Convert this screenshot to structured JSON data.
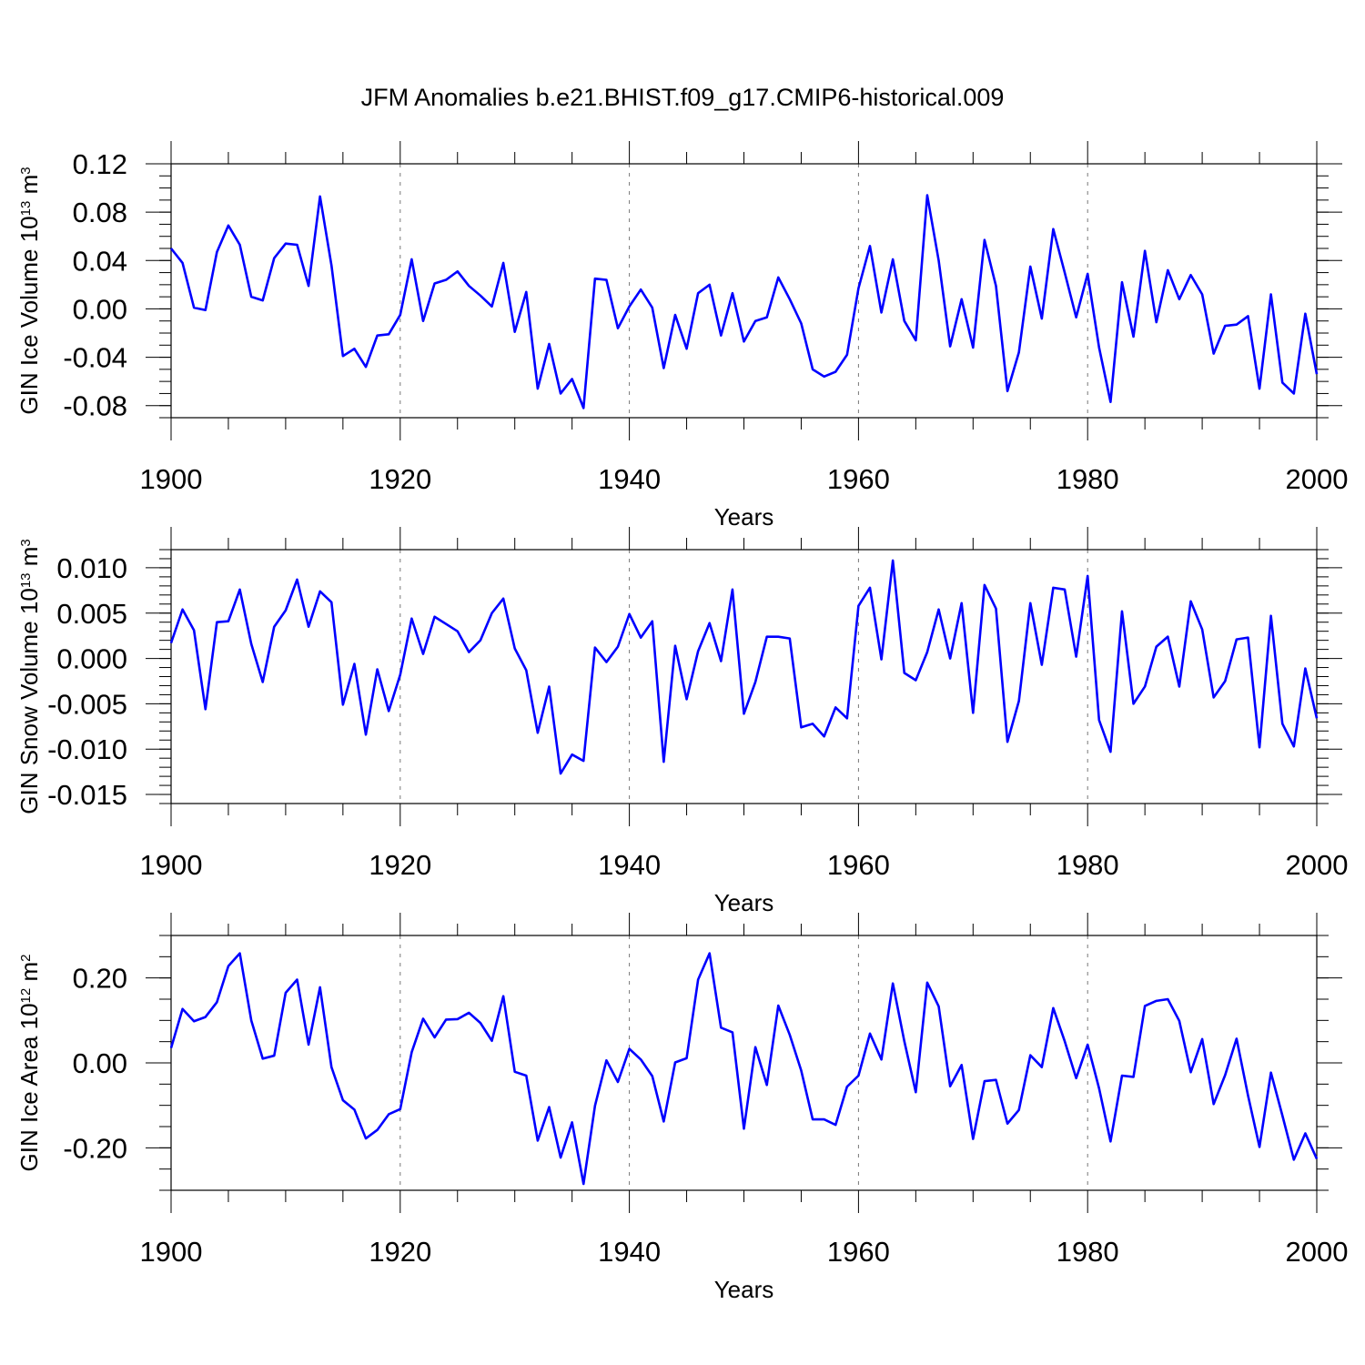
{
  "chart_data": [
    {
      "type": "line",
      "title": "JFM Anomalies b.e21.BHIST.f09_g17.CMIP6-historical.009",
      "ylabel": {
        "base": "GIN Ice Volume 10",
        "exp": "13",
        "unit_base": " m",
        "unit_exp": "3"
      },
      "xlabel": "Years",
      "xlim": [
        1900,
        2000
      ],
      "ylim": [
        -0.09,
        0.12
      ],
      "x_ticks": [
        "1900",
        "1920",
        "1940",
        "1960",
        "1980",
        "2000"
      ],
      "y_ticks": [
        "0.12",
        "0.08",
        "0.04",
        "0.00",
        "-0.04",
        "-0.08"
      ],
      "y_tick_values": [
        0.12,
        0.08,
        0.04,
        0.0,
        -0.04,
        -0.08
      ],
      "grid": "dashed vertical at 1920, 1940, 1960, 1980",
      "series": [
        {
          "name": "GIN Ice Volume",
          "color": "#0000ff",
          "x_start": 1900,
          "values": [
            0.05,
            0.038,
            0.001,
            -0.001,
            0.047,
            0.069,
            0.053,
            0.01,
            0.007,
            0.042,
            0.054,
            0.053,
            0.019,
            0.093,
            0.036,
            -0.039,
            -0.033,
            -0.048,
            -0.022,
            -0.021,
            -0.005,
            0.041,
            -0.01,
            0.021,
            0.024,
            0.031,
            0.019,
            0.011,
            0.002,
            0.038,
            -0.019,
            0.014,
            -0.066,
            -0.029,
            -0.07,
            -0.058,
            -0.082,
            0.025,
            0.024,
            -0.016,
            0.002,
            0.016,
            0.001,
            -0.049,
            -0.005,
            -0.033,
            0.013,
            0.02,
            -0.022,
            0.013,
            -0.027,
            -0.01,
            -0.007,
            0.026,
            0.008,
            -0.012,
            -0.05,
            -0.056,
            -0.052,
            -0.038,
            0.017,
            0.052,
            -0.003,
            0.041,
            -0.01,
            -0.026,
            0.094,
            0.04,
            -0.031,
            0.008,
            -0.032,
            0.057,
            0.019,
            -0.068,
            -0.036,
            0.035,
            -0.008,
            0.066,
            0.03,
            -0.007,
            0.029,
            -0.032,
            -0.077,
            0.022,
            -0.023,
            0.048,
            -0.011,
            0.032,
            0.008,
            0.028,
            0.012,
            -0.037,
            -0.014,
            -0.013,
            -0.006,
            -0.066,
            0.012,
            -0.061,
            -0.07,
            -0.004,
            -0.054
          ]
        }
      ]
    },
    {
      "type": "line",
      "ylabel": {
        "base": "GIN Snow Volume 10",
        "exp": "13",
        "unit_base": " m",
        "unit_exp": "3"
      },
      "xlabel": "Years",
      "xlim": [
        1900,
        2000
      ],
      "ylim": [
        -0.016,
        0.012
      ],
      "x_ticks": [
        "1900",
        "1920",
        "1940",
        "1960",
        "1980",
        "2000"
      ],
      "y_ticks": [
        "0.010",
        "0.005",
        "0.000",
        "-0.005",
        "-0.010",
        "-0.015"
      ],
      "y_tick_values": [
        0.01,
        0.005,
        0.0,
        -0.005,
        -0.01,
        -0.015
      ],
      "grid": "dashed vertical at 1920, 1940, 1960, 1980",
      "series": [
        {
          "name": "GIN Snow Volume",
          "color": "#0000ff",
          "x_start": 1900,
          "values": [
            0.0017,
            0.0054,
            0.0031,
            -0.0056,
            0.004,
            0.0041,
            0.0076,
            0.0016,
            -0.0026,
            0.0035,
            0.0053,
            0.0087,
            0.0035,
            0.0074,
            0.0062,
            -0.0051,
            -0.0006,
            -0.0084,
            -0.0012,
            -0.0058,
            -0.0018,
            0.0044,
            0.0005,
            0.0046,
            0.0038,
            0.003,
            0.0007,
            0.002,
            0.005,
            0.0066,
            0.0011,
            -0.0013,
            -0.0082,
            -0.0031,
            -0.0127,
            -0.0106,
            -0.0113,
            0.0012,
            -0.0004,
            0.0013,
            0.0049,
            0.0023,
            0.0041,
            -0.0114,
            0.0014,
            -0.0045,
            0.0008,
            0.0039,
            -0.0003,
            0.0076,
            -0.0061,
            -0.0026,
            0.0024,
            0.0024,
            0.0022,
            -0.0076,
            -0.0072,
            -0.0086,
            -0.0054,
            -0.0066,
            0.0058,
            0.0078,
            -0.0001,
            0.0108,
            -0.0016,
            -0.0024,
            0.0007,
            0.0054,
            0.0,
            0.0061,
            -0.006,
            0.0081,
            0.0055,
            -0.0092,
            -0.0047,
            0.0061,
            -0.0007,
            0.0078,
            0.0076,
            0.0002,
            0.0091,
            -0.0068,
            -0.0103,
            0.0052,
            -0.005,
            -0.0031,
            0.0013,
            0.0024,
            -0.0031,
            0.0063,
            0.0032,
            -0.0043,
            -0.0025,
            0.0021,
            0.0023,
            -0.0098,
            0.0047,
            -0.0072,
            -0.0097,
            -0.0011,
            -0.0066
          ]
        }
      ]
    },
    {
      "type": "line",
      "ylabel": {
        "base": "GIN Ice Area 10",
        "exp": "12",
        "unit_base": " m",
        "unit_exp": "2"
      },
      "xlabel": "Years",
      "xlim": [
        1900,
        2000
      ],
      "ylim": [
        -0.3,
        0.3
      ],
      "x_ticks": [
        "1900",
        "1920",
        "1940",
        "1960",
        "1980",
        "2000"
      ],
      "y_ticks": [
        "0.20",
        "0.00",
        "-0.20"
      ],
      "y_tick_values": [
        0.2,
        0.0,
        -0.2
      ],
      "grid": "dashed vertical at 1920, 1940, 1960, 1980",
      "series": [
        {
          "name": "GIN Ice Area",
          "color": "#0000ff",
          "x_start": 1900,
          "values": [
            0.035,
            0.127,
            0.098,
            0.108,
            0.143,
            0.228,
            0.258,
            0.1,
            0.01,
            0.017,
            0.165,
            0.196,
            0.043,
            0.178,
            -0.01,
            -0.088,
            -0.11,
            -0.178,
            -0.158,
            -0.121,
            -0.109,
            0.025,
            0.104,
            0.06,
            0.102,
            0.103,
            0.118,
            0.094,
            0.052,
            0.157,
            -0.021,
            -0.03,
            -0.183,
            -0.104,
            -0.223,
            -0.14,
            -0.285,
            -0.101,
            0.006,
            -0.045,
            0.033,
            0.008,
            -0.031,
            -0.138,
            0.001,
            0.011,
            0.196,
            0.258,
            0.083,
            0.072,
            -0.155,
            0.037,
            -0.052,
            0.135,
            0.066,
            -0.018,
            -0.133,
            -0.133,
            -0.146,
            -0.056,
            -0.03,
            0.069,
            0.008,
            0.187,
            0.051,
            -0.069,
            0.189,
            0.133,
            -0.055,
            -0.005,
            -0.179,
            -0.043,
            -0.04,
            -0.143,
            -0.111,
            0.018,
            -0.01,
            0.129,
            0.051,
            -0.036,
            0.043,
            -0.06,
            -0.185,
            -0.03,
            -0.033,
            0.134,
            0.146,
            0.15,
            0.099,
            -0.022,
            0.056,
            -0.097,
            -0.029,
            0.057,
            -0.077,
            -0.198,
            -0.023,
            -0.124,
            -0.228,
            -0.166,
            -0.226
          ]
        }
      ]
    }
  ]
}
